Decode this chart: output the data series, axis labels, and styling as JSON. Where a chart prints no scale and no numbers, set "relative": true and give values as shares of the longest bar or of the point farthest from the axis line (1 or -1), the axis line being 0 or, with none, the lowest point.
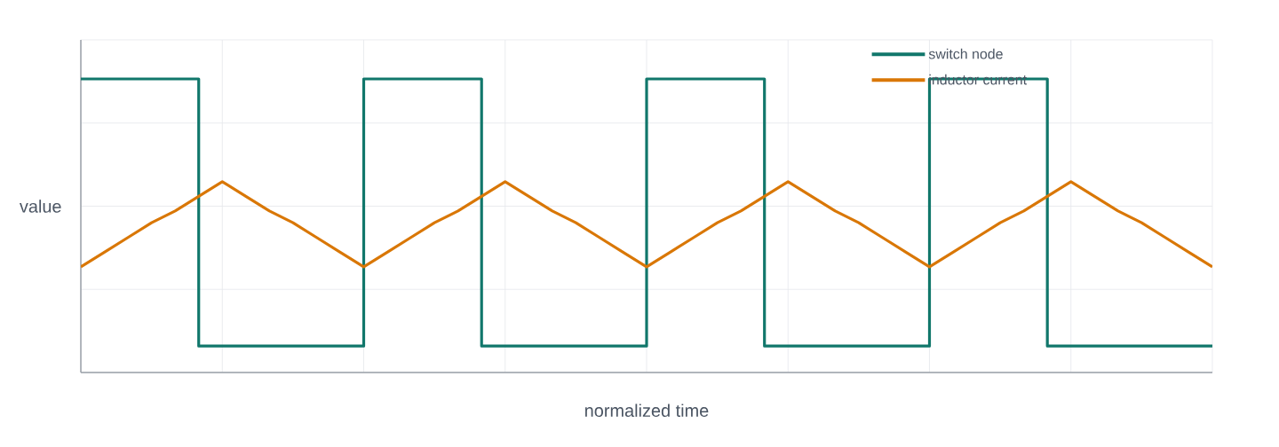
{
  "chart_data": {
    "type": "line",
    "relative": true,
    "xlabel": "normalized time",
    "ylabel": "value",
    "categories": [
      null,
      null,
      null,
      null,
      null,
      null,
      null,
      null,
      null,
      null,
      null,
      null,
      null,
      null,
      null,
      null,
      null,
      null,
      null,
      null,
      null,
      null,
      null,
      null,
      null,
      null,
      null,
      null,
      null,
      null,
      null,
      null,
      null,
      null,
      null,
      null,
      null,
      null,
      null,
      null,
      null,
      null,
      null,
      null,
      null,
      null,
      null,
      null,
      null
    ],
    "grid": true,
    "legend": "top right",
    "series": [
      {
        "name": "switch node",
        "type": "step",
        "color": "#11776b",
        "values": [
          1,
          1,
          1,
          1,
          1,
          0.09,
          0.09,
          0.09,
          0.09,
          0.09,
          0.09,
          0.09,
          1,
          1,
          1,
          1,
          1,
          0.09,
          0.09,
          0.09,
          0.09,
          0.09,
          0.09,
          0.09,
          1,
          1,
          1,
          1,
          1,
          0.09,
          0.09,
          0.09,
          0.09,
          0.09,
          0.09,
          0.09,
          1,
          1,
          1,
          1,
          1,
          0.09,
          0.09,
          0.09,
          0.09,
          0.09,
          0.09,
          0.09,
          0.09
        ]
      },
      {
        "name": "inductor current",
        "color": "#d97706",
        "values": [
          0.36,
          0.41,
          0.46,
          0.51,
          0.55,
          0.6,
          0.65,
          0.6,
          0.55,
          0.51,
          0.46,
          0.41,
          0.36,
          0.41,
          0.46,
          0.51,
          0.55,
          0.6,
          0.65,
          0.6,
          0.55,
          0.51,
          0.46,
          0.41,
          0.36,
          0.41,
          0.46,
          0.51,
          0.55,
          0.6,
          0.65,
          0.6,
          0.55,
          0.51,
          0.46,
          0.41,
          0.36,
          0.41,
          0.46,
          0.51,
          0.55,
          0.6,
          0.65,
          0.6,
          0.55,
          0.51,
          0.46,
          0.41,
          0.36
        ]
      }
    ]
  }
}
